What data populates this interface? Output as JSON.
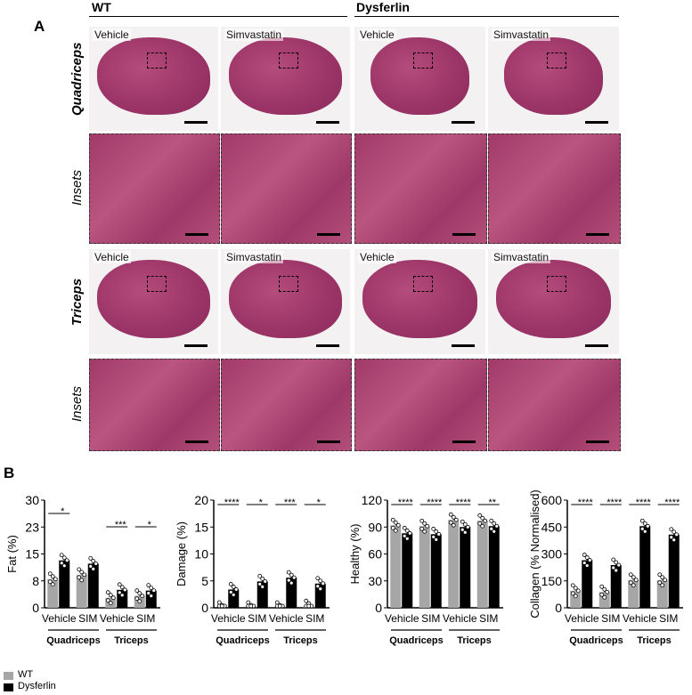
{
  "panel_a": {
    "label": "A",
    "groups": [
      "WT",
      "Dysferlin"
    ],
    "rows": [
      "Quadriceps",
      "Insets",
      "Triceps",
      "Insets"
    ],
    "captions": [
      "Vehicle",
      "Simvastatin",
      "Vehicle",
      "Simvastatin"
    ]
  },
  "panel_b": {
    "label": "B"
  },
  "legend": {
    "items": [
      {
        "label": "WT",
        "color": "#a6a6a6"
      },
      {
        "label": "Dysferlin",
        "color": "#000000"
      }
    ]
  },
  "chart_data": [
    {
      "type": "bar",
      "ylabel": "Fat (%)",
      "ylim": [
        0,
        30
      ],
      "yticks": [
        "0",
        "8",
        "15",
        "23",
        "30"
      ],
      "ytickvals": [
        0,
        7.5,
        15,
        22.5,
        30
      ],
      "categories": [
        "Vehicle",
        "SIM",
        "Vehicle",
        "SIM"
      ],
      "groups": [
        "Quadriceps",
        "Triceps"
      ],
      "series": [
        {
          "name": "WT",
          "values": [
            8,
            9.2,
            2.8,
            3.3
          ]
        },
        {
          "name": "Dysferlin",
          "values": [
            13.2,
            12.3,
            5,
            4.8
          ]
        }
      ],
      "significance": [
        "*",
        "",
        "***",
        "*"
      ]
    },
    {
      "type": "bar",
      "ylabel": "Damage (%)",
      "ylim": [
        0,
        20
      ],
      "yticks": [
        "0",
        "5",
        "10",
        "15",
        "20"
      ],
      "ytickvals": [
        0,
        5,
        10,
        15,
        20
      ],
      "categories": [
        "Vehicle",
        "SIM",
        "Vehicle",
        "SIM"
      ],
      "groups": [
        "Quadriceps",
        "Triceps"
      ],
      "series": [
        {
          "name": "WT",
          "values": [
            0,
            0,
            0,
            0.3
          ]
        },
        {
          "name": "Dysferlin",
          "values": [
            3.4,
            4.9,
            5.6,
            4.5
          ]
        }
      ],
      "significance": [
        "****",
        "*",
        "***",
        "*"
      ]
    },
    {
      "type": "bar",
      "ylabel": "Healthy (%)",
      "ylim": [
        0,
        120
      ],
      "yticks": [
        "0",
        "30",
        "60",
        "90",
        "120"
      ],
      "ytickvals": [
        0,
        30,
        60,
        90,
        120
      ],
      "categories": [
        "Vehicle",
        "SIM",
        "Vehicle",
        "SIM"
      ],
      "groups": [
        "Quadriceps",
        "Triceps"
      ],
      "series": [
        {
          "name": "WT",
          "values": [
            92,
            91,
            98,
            97
          ]
        },
        {
          "name": "Dysferlin",
          "values": [
            83,
            82,
            90,
            91
          ]
        }
      ],
      "significance": [
        "****",
        "****",
        "****",
        "**"
      ]
    },
    {
      "type": "bar",
      "ylabel": "Collagen (% Normalised)",
      "ylim": [
        0,
        600
      ],
      "yticks": [
        "0",
        "150",
        "300",
        "450",
        "600"
      ],
      "ytickvals": [
        0,
        150,
        300,
        450,
        600
      ],
      "categories": [
        "Vehicle",
        "SIM",
        "Vehicle",
        "SIM"
      ],
      "groups": [
        "Quadriceps",
        "Triceps"
      ],
      "series": [
        {
          "name": "WT",
          "values": [
            95,
            88,
            155,
            155
          ]
        },
        {
          "name": "Dysferlin",
          "values": [
            265,
            238,
            455,
            408
          ]
        }
      ],
      "significance": [
        "****",
        "****",
        "****",
        "****"
      ]
    }
  ]
}
